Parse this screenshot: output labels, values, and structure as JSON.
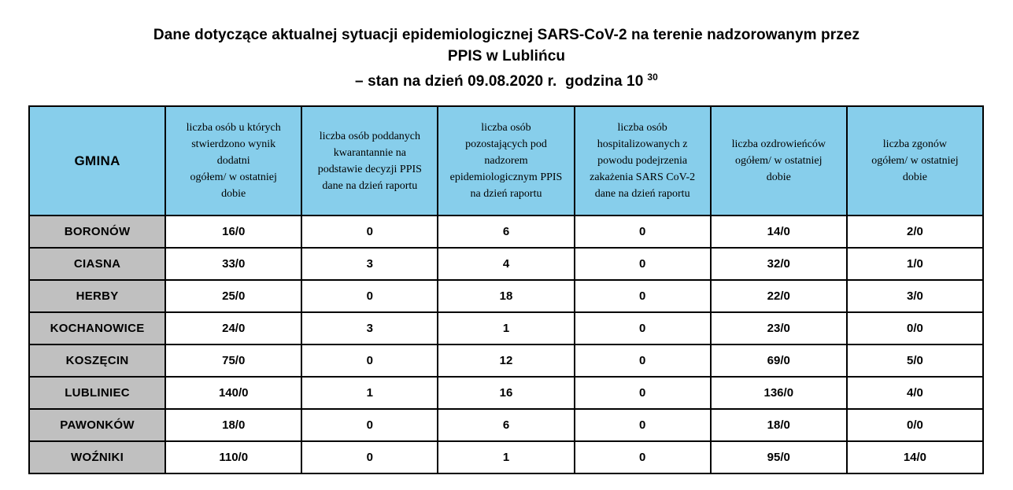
{
  "title": {
    "line1": "Dane dotyczące aktualnej sytuacji epidemiologicznej SARS-CoV-2 na terenie nadzorowanym przez",
    "line2": "PPIS w Lublińcu",
    "line3": "– stan na dzień 09.08.2020 r.  godzina 10",
    "line3_superscript": "30"
  },
  "table": {
    "header": {
      "gmina": "GMINA",
      "col1": "liczba osób u których\nstwierdzono wynik\ndodatni\nogółem/ w ostatniej\ndobie",
      "col2": "liczba osób poddanych\nkwarantannie na\npodstawie decyzji PPIS\ndane na dzień raportu",
      "col3": "liczba osób\npozostających pod\nnadzorem\nepidemiologicznym PPIS\nna dzień raportu",
      "col4": "liczba osób\nhospitalizowanych z\npowodu podejrzenia\nzakażenia SARS CoV-2\ndane na dzień raportu",
      "col5": "liczba ozdrowieńców\nogółem/ w ostatniej\ndobie",
      "col6": "liczba zgonów\nogółem/ w ostatniej\ndobie"
    },
    "rows": [
      {
        "gmina": "BORONÓW",
        "values": [
          "16/0",
          "0",
          "6",
          "0",
          "14/0",
          "2/0"
        ]
      },
      {
        "gmina": "CIASNA",
        "values": [
          "33/0",
          "3",
          "4",
          "0",
          "32/0",
          "1/0"
        ]
      },
      {
        "gmina": "HERBY",
        "values": [
          "25/0",
          "0",
          "18",
          "0",
          "22/0",
          "3/0"
        ]
      },
      {
        "gmina": "KOCHANOWICE",
        "values": [
          "24/0",
          "3",
          "1",
          "0",
          "23/0",
          "0/0"
        ]
      },
      {
        "gmina": "KOSZĘCIN",
        "values": [
          "75/0",
          "0",
          "12",
          "0",
          "69/0",
          "5/0"
        ]
      },
      {
        "gmina": "LUBLINIEC",
        "values": [
          "140/0",
          "1",
          "16",
          "0",
          "136/0",
          "4/0"
        ]
      },
      {
        "gmina": "PAWONKÓW",
        "values": [
          "18/0",
          "0",
          "6",
          "0",
          "18/0",
          "0/0"
        ]
      },
      {
        "gmina": "WOŹNIKI",
        "values": [
          "110/0",
          "0",
          "1",
          "0",
          "95/0",
          "14/0"
        ]
      }
    ]
  },
  "colors": {
    "header_bg": "#87CEEB",
    "gmina_column_bg": "#C0C0C0",
    "border": "#000000",
    "page_bg": "#FFFFFF"
  }
}
